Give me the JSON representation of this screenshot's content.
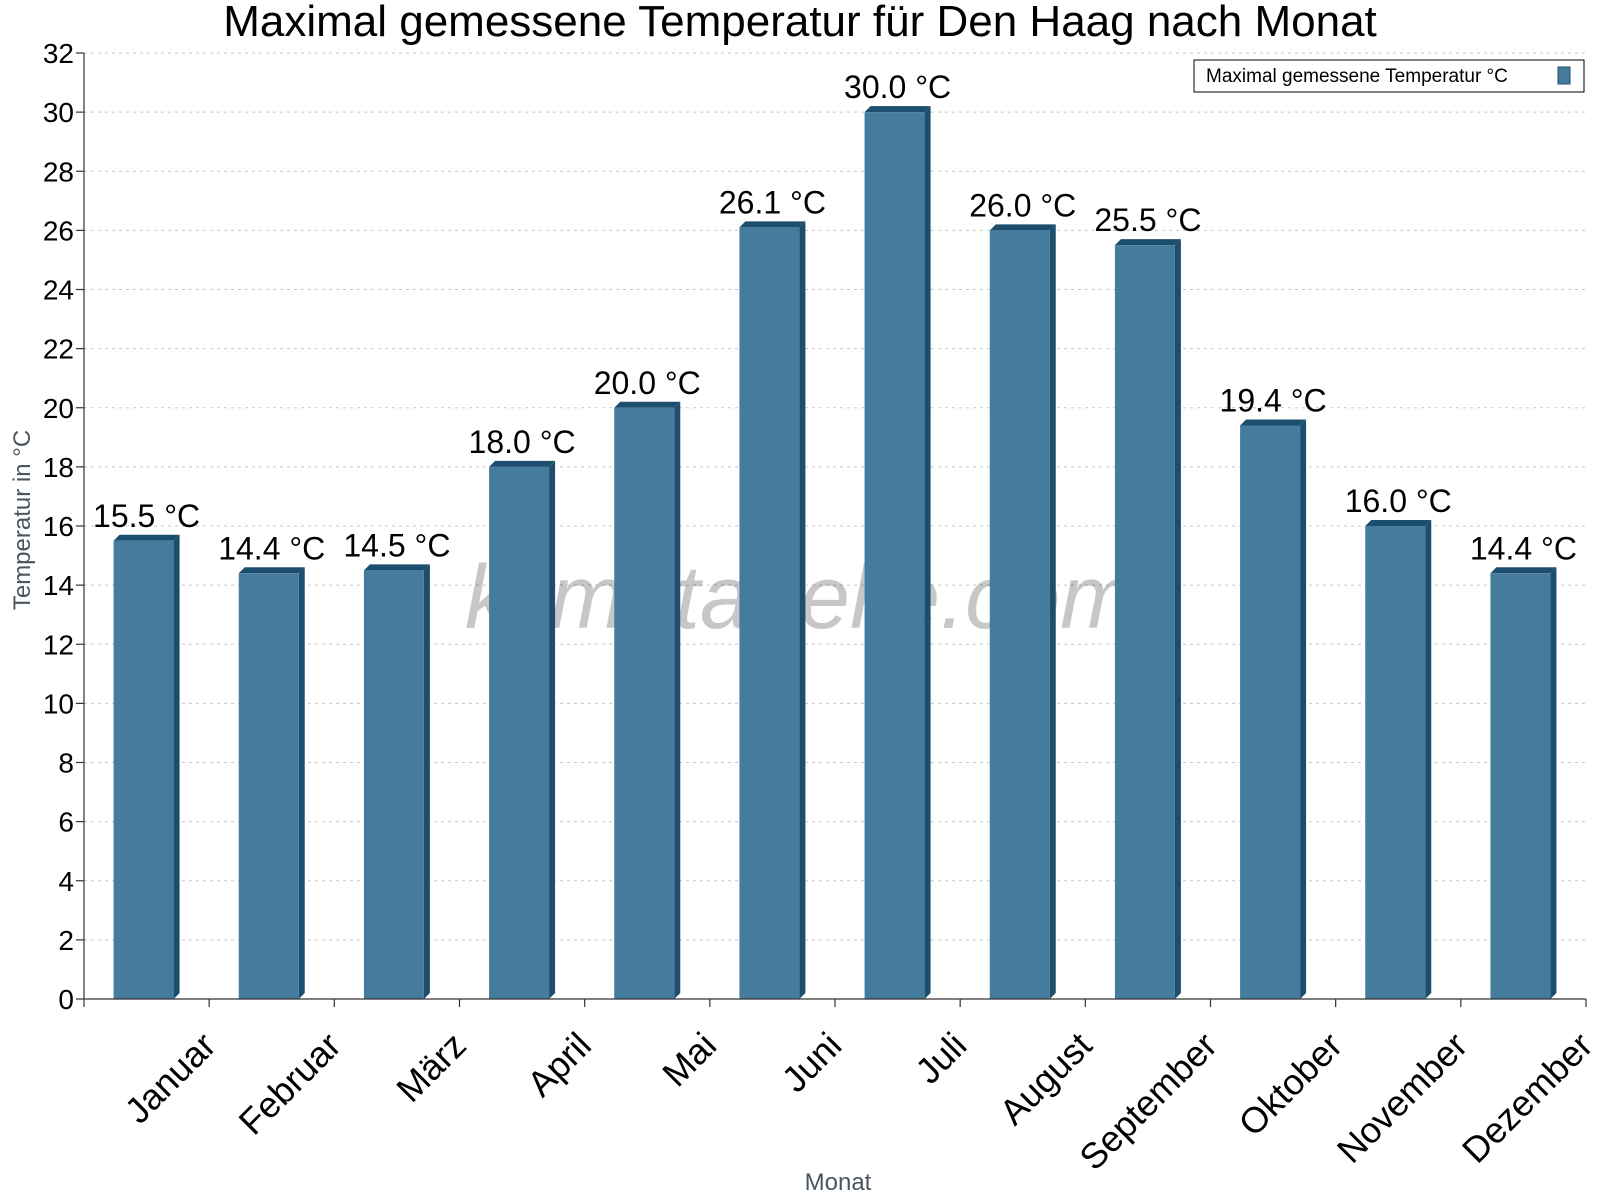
{
  "chart_data": {
    "type": "bar",
    "title": "Maximal gemessene Temperatur für Den Haag nach Monat",
    "xlabel": "Monat",
    "ylabel": "Temperatur in °C",
    "categories": [
      "Januar",
      "Februar",
      "März",
      "April",
      "Mai",
      "Juni",
      "Juli",
      "August",
      "September",
      "Oktober",
      "November",
      "Dezember"
    ],
    "series": [
      {
        "name": "Maximal gemessene Temperatur °C",
        "values": [
          15.5,
          14.4,
          14.5,
          18.0,
          20.0,
          26.1,
          30.0,
          26.0,
          25.5,
          19.4,
          16.0,
          14.4
        ],
        "labels": [
          "15.5 °C",
          "14.4 °C",
          "14.5 °C",
          "18.0 °C",
          "20.0 °C",
          "26.1 °C",
          "30.0 °C",
          "26.0 °C",
          "25.5 °C",
          "19.4 °C",
          "16.0 °C",
          "14.4 °C"
        ],
        "color": "#457b9d",
        "side_color": "#1d4e6e"
      }
    ],
    "ylim": [
      0,
      32
    ],
    "yticks": [
      0,
      2,
      4,
      6,
      8,
      10,
      12,
      14,
      16,
      18,
      20,
      22,
      24,
      26,
      28,
      30,
      32
    ],
    "grid": true,
    "legend_position": "top-right"
  },
  "watermark": "klimatabelle.com"
}
